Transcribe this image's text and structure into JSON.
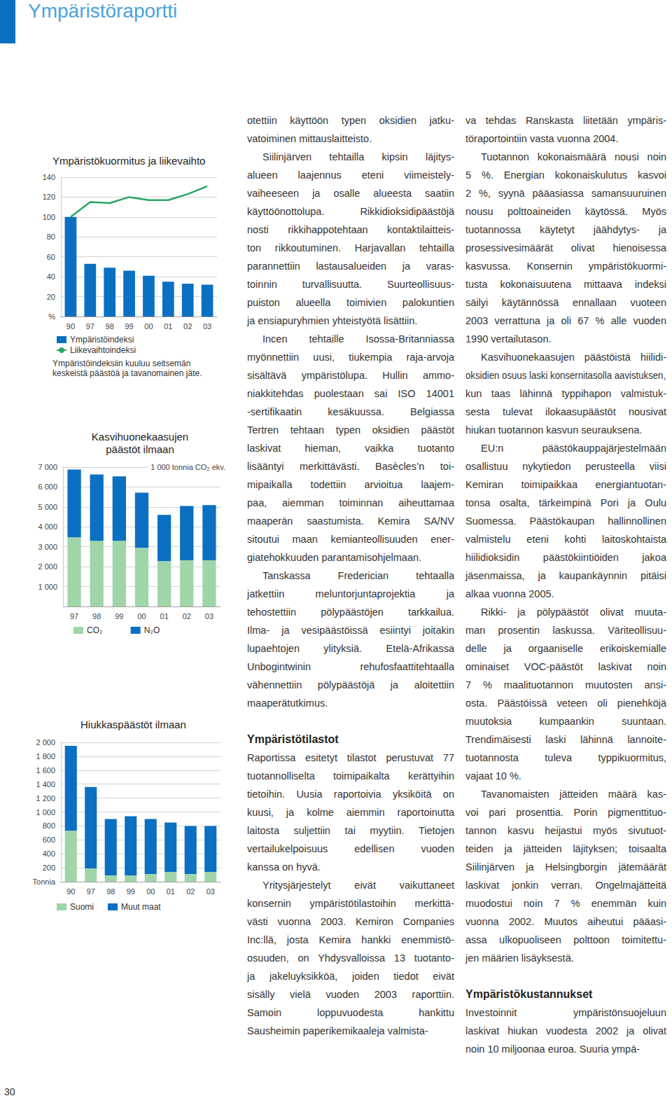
{
  "header": {
    "title": "Ympäristöraportti"
  },
  "chart_data": [
    {
      "type": "bar",
      "title": "Ympäristökuormitus ja liikevaihto",
      "y_label": "%",
      "categories": [
        "90",
        "97",
        "98",
        "99",
        "00",
        "01",
        "02",
        "03"
      ],
      "ylim": [
        0,
        140
      ],
      "yticks": [
        20,
        40,
        60,
        80,
        100,
        120,
        140
      ],
      "grid": true,
      "legend": "bottom-left",
      "series": [
        {
          "name": "Ympäristöindeksi",
          "type": "bar",
          "color": "#0b6fc2",
          "values": [
            100,
            53,
            49,
            46,
            41,
            35,
            33,
            32
          ]
        },
        {
          "name": "Liikevaihtoindeksi",
          "type": "line",
          "color": "#2aa566",
          "values": [
            100,
            115,
            114,
            120,
            117,
            117,
            123,
            131
          ]
        }
      ],
      "note": "Ympäristöindeksiin kuuluu seitsemän\nkeskeistä päästöä ja tavanomainen jäte."
    },
    {
      "type": "bar",
      "title": "Kasvihuonekaasujen\npäästöt ilmaan",
      "y_label": "1 000 tonnia CO₂ ekv.",
      "categories": [
        "97",
        "98",
        "99",
        "00",
        "01",
        "02",
        "03"
      ],
      "ylim": [
        0,
        7000
      ],
      "yticks": [
        {
          "value": 1000,
          "label": "1 000"
        },
        {
          "value": 2000,
          "label": "2 000"
        },
        {
          "value": 3000,
          "label": "3 000"
        },
        {
          "value": 4000,
          "label": "4 000"
        },
        {
          "value": 5000,
          "label": "5 000"
        },
        {
          "value": 6000,
          "label": "6 000"
        },
        {
          "value": 7000,
          "label": "7 000"
        }
      ],
      "grid": true,
      "stacked": true,
      "legend": "bottom-left",
      "series": [
        {
          "name": "CO₂",
          "color": "#9fd5a9",
          "values": [
            3470,
            3300,
            3300,
            2950,
            2280,
            2320,
            2320
          ]
        },
        {
          "name": "N₂O",
          "color": "#0b6fc2",
          "values": [
            3410,
            3330,
            3230,
            2770,
            2320,
            2730,
            2770
          ]
        }
      ]
    },
    {
      "type": "bar",
      "title": "Hiukkaspäästöt ilmaan",
      "y_label": "Tonnia",
      "categories": [
        "90",
        "97",
        "98",
        "99",
        "00",
        "01",
        "02",
        "03"
      ],
      "ylim": [
        0,
        2000
      ],
      "yticks": [
        200,
        400,
        600,
        800,
        {
          "value": 1000,
          "label": "1 000"
        },
        {
          "value": 1200,
          "label": "1 200"
        },
        {
          "value": 1400,
          "label": "1 400"
        },
        {
          "value": 1600,
          "label": "1 600"
        },
        {
          "value": 1800,
          "label": "1 800"
        },
        {
          "value": 2000,
          "label": "2 000"
        }
      ],
      "grid": true,
      "stacked": true,
      "legend": "bottom-left",
      "series": [
        {
          "name": "Suomi",
          "color": "#9fd5a9",
          "values": [
            730,
            190,
            90,
            90,
            110,
            140,
            110,
            140
          ]
        },
        {
          "name": "Muut maat",
          "color": "#0b6fc2",
          "values": [
            1220,
            1170,
            810,
            850,
            790,
            710,
            690,
            660
          ]
        }
      ]
    }
  ],
  "columns": [
    {
      "blocks": [
        {
          "paragraphs": [
            [
              "otettiin käyttöön typen oksidien jatku-",
              "vatoiminen mittauslaitteisto."
            ],
            [
              "Siilinjärven tehtailla kipsin läjitys-",
              "alueen laajennus eteni viimeistely-",
              "vaiheeseen ja osalle alueesta saatiin",
              "käyttöönottolupa. Rikkidioksidipäästöjä",
              "nosti rikkihappotehtaan kontaktilaitteis-",
              "ton rikkoutuminen. Harjavallan tehtailla",
              "parannettiin lastausalueiden ja varas-",
              "toinnin turvallisuutta. Suurteollisuus-",
              "puiston alueella toimivien palokuntien",
              "ja ensiapuryhmien yhteistyötä lisättiin."
            ],
            [
              "Incen tehtaille Isossa-Britanniassa",
              "myönnettiin uusi, tiukempia raja-arvoja",
              "sisältävä ympäristölupa. Hullin ammo-",
              "niakkitehdas puolestaan sai ISO 14001",
              "-sertifikaatin kesäkuussa. Belgiassa",
              "Tertren tehtaan typen oksidien päästöt",
              "laskivat hieman, vaikka tuotanto",
              "lisääntyi merkittävästi. Basècles’n toi-",
              "mipaikalla todettiin arvioitua laajem-",
              "paa, aiemman toiminnan aiheuttamaa",
              "maaperän saastumista. Kemira SA/NV",
              "sitoutui maan kemianteollisuuden ener-",
              "giatehokkuuden parantamisohjelmaan."
            ],
            [
              "Tanskassa Frederician tehtaalla",
              "jatkettiin meluntorjuntaprojektia ja",
              "tehostettiin pölypäästöjen tarkkailua.",
              "Ilma- ja vesipäästöissä esiintyi joitakin",
              "lupaehtojen ylityksiä. Etelä-Afrikassa",
              "Unbogintwinin rehufosfaattitehtaalla",
              "vähennettiin pölypäästöjä ja aloitettiin",
              "maaperätutkimus."
            ]
          ]
        },
        {
          "heading": "Ympäristötilastot",
          "paragraphs": [
            [
              "Raportissa esitetyt tilastot perustuvat 77",
              "tuotannolliselta toimipaikalta kerättyihin",
              "tietoihin. Uusia raportoivia yksiköitä on",
              "kuusi, ja kolme aiemmin raportoinutta",
              "laitosta suljettiin tai myytiin. Tietojen",
              "vertailukelpoisuus edellisen vuoden",
              "kanssa on hyvä."
            ],
            [
              "Yritysjärjestelyt eivät vaikuttaneet",
              "konsernin ympäristötilastoihin merkittä-",
              "västi vuonna 2003. Kemiron Companies",
              "Inc:llä, josta Kemira hankki enemmistö-",
              "osuuden, on Yhdysvalloissa 13 tuotanto-",
              "ja jakeluyksikköä, joiden tiedot eivät",
              "sisälly vielä vuoden 2003 raporttiin.",
              "Samoin loppuvuodesta hankittu",
              "Sausheimin paperikemikaaleja valmista-"
            ]
          ]
        }
      ]
    },
    {
      "blocks": [
        {
          "paragraphs": [
            [
              "va tehdas Ranskasta liitetään ympäris-",
              "töraportointiin vasta vuonna 2004."
            ],
            [
              "Tuotannon kokonaismäärä nousi noin",
              "5 %. Energian kokonaiskulutus kasvoi",
              "2 %, syynä pääasiassa samansuuruinen",
              "nousu polttoaineiden käytössä. Myös",
              "tuotannossa käytetyt jäähdytys- ja",
              "prosessivesimäärät olivat hienoisessa",
              "kasvussa. Konsernin ympäristökuormi-",
              "tusta kokonaisuutena mittaava indeksi",
              "säilyi käytännössä ennallaan vuoteen",
              "2003 verrattuna ja oli 67 % alle vuoden",
              "1990 vertailutason."
            ],
            [
              "Kasvihuonekaasujen päästöistä hiilidi-",
              "oksidien osuus laski konsernitasolla aavistuksen,",
              "kun taas lähinnä typpihapon valmistuk-",
              "sesta tulevat ilokaasupäästöt nousivat",
              "hiukan tuotannon kasvun seurauksena."
            ],
            [
              "EU:n päästökauppajärjestelmään",
              "osallistuu nykytiedon perusteella viisi",
              "Kemiran toimipaikkaa energiantuotan-",
              "tonsa osalta, tärkeimpinä Pori ja Oulu",
              "Suomessa. Päästökaupan hallinnollinen",
              "valmistelu eteni kohti laitoskohtaista",
              "hiilidioksidin päästökiintiöiden jakoa",
              "jäsenmaissa, ja kaupankäynnin pitäisi",
              "alkaa vuonna 2005."
            ],
            [
              "Rikki- ja pölypäästöt olivat muuta-",
              "man prosentin laskussa. Väriteollisuu-",
              "delle ja orgaaniselle erikoiskemialle",
              "ominaiset VOC-päästöt laskivat noin",
              "7 % maalituotannon muutosten ansi-",
              "osta. Päästöissä veteen oli pienehköjä",
              "muutoksia kumpaankin suuntaan.",
              "Trendimäisesti laski lähinnä lannoite-",
              "tuotannosta tuleva typpikuormitus,",
              "vajaat 10 %."
            ],
            [
              "Tavanomaisten jätteiden määrä kas-",
              "voi pari prosenttia. Porin pigmenttituo-",
              "tannon kasvu heijastui myös sivutuot-",
              "teiden ja jätteiden läjityksen; toisaalta",
              "Siilinjärven ja Helsingborgin jätemäärät",
              "laskivat jonkin verran. Ongelmajätteitä",
              "muodostui noin 7 % enemmän kuin",
              "vuonna 2002. Muutos aiheutui pääasi-",
              "assa ulkopuoliseen polttoon toimitettu-",
              "jen määrien lisäyksestä."
            ]
          ]
        },
        {
          "heading": "Ympäristökustannukset",
          "paragraphs": [
            [
              "Investoinnit ympäristönsuojeluun",
              "laskivat hiukan vuodesta 2002 ja olivat",
              "noin 10 miljoonaa euroa. Suuria ympä-"
            ]
          ]
        }
      ]
    }
  ],
  "page_number": 30
}
